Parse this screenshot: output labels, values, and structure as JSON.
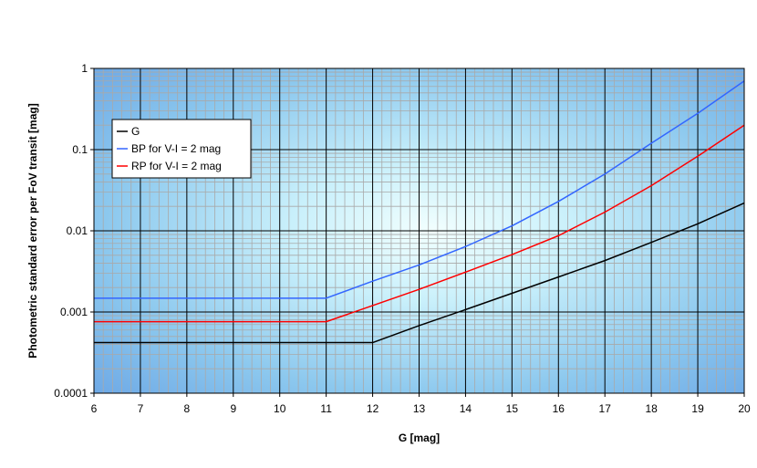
{
  "chart_data": {
    "type": "line",
    "xlabel": "G [mag]",
    "ylabel": "Photometric standard error per FoV transit [mag]",
    "xlim": [
      6,
      20
    ],
    "ylim": [
      0.0001,
      1
    ],
    "yscale": "log",
    "grid": true,
    "legend_position": "upper-left",
    "x_ticks": [
      "6",
      "7",
      "8",
      "9",
      "10",
      "11",
      "12",
      "13",
      "14",
      "15",
      "16",
      "17",
      "18",
      "19",
      "20"
    ],
    "y_ticks": [
      "0.0001",
      "0.001",
      "0.01",
      "0.1",
      "1"
    ],
    "series": [
      {
        "name": "G",
        "color": "#000000",
        "x": [
          6,
          7,
          8,
          9,
          10,
          11,
          12,
          13,
          14,
          15,
          16,
          17,
          18,
          19,
          20
        ],
        "y": [
          0.00042,
          0.00042,
          0.00042,
          0.00042,
          0.00042,
          0.00042,
          0.00042,
          0.00068,
          0.00107,
          0.0017,
          0.0027,
          0.0043,
          0.0072,
          0.0122,
          0.022
        ]
      },
      {
        "name": "BP for V-I = 2 mag",
        "color": "#3366ff",
        "x": [
          6,
          7,
          8,
          9,
          10,
          11,
          12,
          13,
          14,
          15,
          16,
          17,
          18,
          19,
          20
        ],
        "y": [
          0.00148,
          0.00148,
          0.00148,
          0.00148,
          0.00148,
          0.00148,
          0.0024,
          0.0038,
          0.0064,
          0.0115,
          0.023,
          0.05,
          0.12,
          0.28,
          0.7
        ]
      },
      {
        "name": "RP for V-I = 2 mag",
        "color": "#ff0000",
        "x": [
          6,
          7,
          8,
          9,
          10,
          11,
          12,
          13,
          14,
          15,
          16,
          17,
          18,
          19,
          20
        ],
        "y": [
          0.00076,
          0.00076,
          0.00076,
          0.00076,
          0.00076,
          0.00076,
          0.0012,
          0.0019,
          0.0031,
          0.0051,
          0.0087,
          0.017,
          0.036,
          0.083,
          0.2
        ]
      }
    ]
  }
}
